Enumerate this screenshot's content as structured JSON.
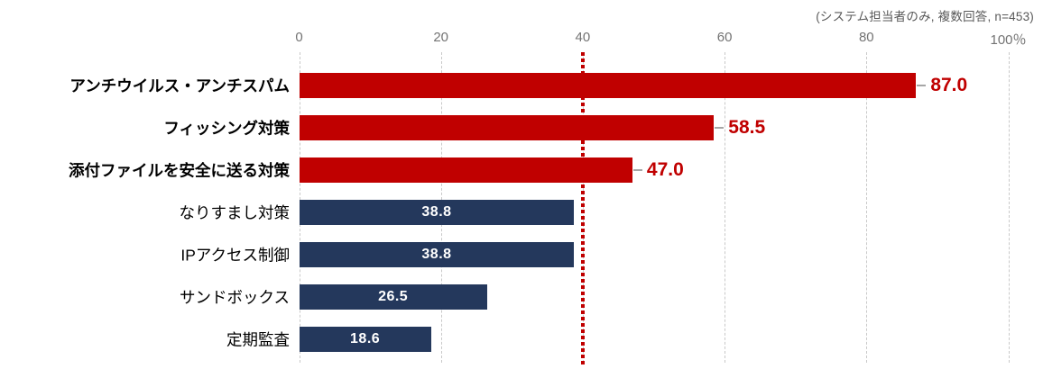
{
  "annotation": "(システム担当者のみ, 複数回答, n=453)",
  "colors": {
    "highlight_bar": "#C00000",
    "normal_bar": "#24385C",
    "value_outside_text": "#C00000",
    "value_inside_text": "#FFFFFF",
    "grid_line": "#C9C9C9",
    "axis_text": "#737373",
    "annotation_text": "#595959",
    "reference_line": "#C00000",
    "leader_line": "#A6A6A6",
    "label_text": "#000000"
  },
  "chart_data": {
    "type": "bar",
    "orientation": "horizontal",
    "title": "",
    "xlabel": "",
    "ylabel": "",
    "categories": [
      "アンチウイルス・アンチスパム",
      "フィッシング対策",
      "添付ファイルを安全に送る対策",
      "なりすまし対策",
      "IPアクセス制御",
      "サンドボックス",
      "定期監査"
    ],
    "values": [
      87.0,
      58.5,
      47.0,
      38.8,
      38.8,
      26.5,
      18.6
    ],
    "value_labels": [
      "87.0",
      "58.5",
      "47.0",
      "38.8",
      "38.8",
      "26.5",
      "18.6"
    ],
    "emphasized": [
      true,
      true,
      true,
      false,
      false,
      false,
      false
    ],
    "x_axis": {
      "position": "top",
      "min": 0,
      "max": 100,
      "ticks": [
        0,
        20,
        40,
        60,
        80,
        100
      ],
      "tick_labels": [
        "0",
        "20",
        "40",
        "60",
        "80",
        "100％"
      ]
    },
    "reference_line": {
      "value": 40,
      "style": "dotted"
    },
    "grid": {
      "vertical_dashed": true
    },
    "legend": "none",
    "value_label_position": {
      "emphasized": "outside-end",
      "normal": "inside-center"
    }
  }
}
